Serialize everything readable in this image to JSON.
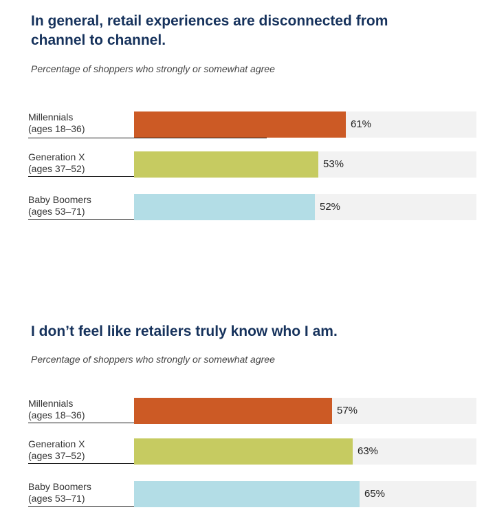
{
  "chart_data": [
    {
      "type": "bar",
      "orientation": "horizontal",
      "title": "In general, retail experiences are disconnected from channel to channel.",
      "subtitle": "Percentage of shoppers who strongly or somewhat agree",
      "categories": [
        [
          "Millennials",
          "(ages 18–36)"
        ],
        [
          "Generation X",
          "(ages 37–52)"
        ],
        [
          "Baby Boomers",
          "(ages 53–71)"
        ]
      ],
      "values": [
        61,
        53,
        52
      ],
      "value_labels": [
        "61%",
        "53%",
        "52%"
      ],
      "colors": [
        "#cc5a25",
        "#c6cb61",
        "#b3dde6"
      ],
      "xlim": [
        0,
        100
      ],
      "grid": false
    },
    {
      "type": "bar",
      "orientation": "horizontal",
      "title": "I don’t feel like retailers truly know who I am.",
      "subtitle": "Percentage of shoppers who strongly or somewhat agree",
      "categories": [
        [
          "Millennials",
          "(ages 18–36)"
        ],
        [
          "Generation X",
          "(ages 37–52)"
        ],
        [
          "Baby Boomers",
          "(ages 53–71)"
        ]
      ],
      "values": [
        57,
        63,
        65
      ],
      "value_labels": [
        "57%",
        "63%",
        "65%"
      ],
      "colors": [
        "#cc5a25",
        "#c6cb61",
        "#b3dde6"
      ],
      "xlim": [
        0,
        100
      ],
      "grid": false
    }
  ]
}
